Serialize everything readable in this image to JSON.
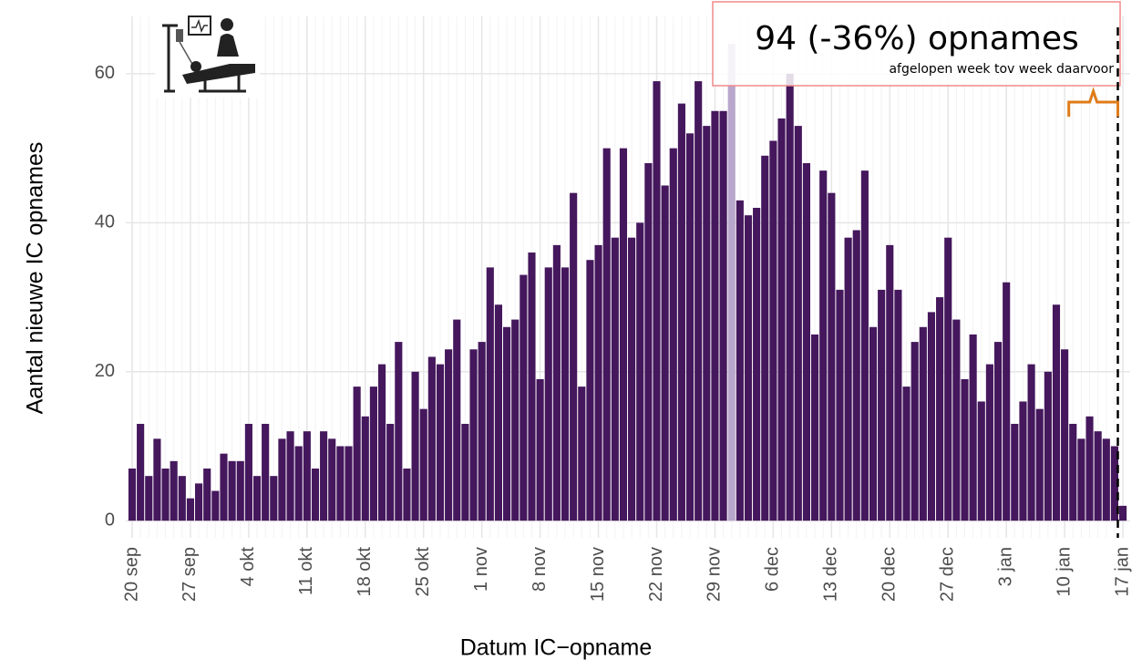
{
  "chart_data": {
    "type": "bar",
    "x_label": "Datum IC−opname",
    "y_label": "Aantal nieuwe IC opnames",
    "annotation_title": "94 (-36%) opnames",
    "annotation_subtitle": "afgelopen week tov week daarvoor",
    "categories": [
      "20 sep",
      null,
      null,
      null,
      null,
      null,
      null,
      "27 sep",
      null,
      null,
      null,
      null,
      null,
      null,
      "4 okt",
      null,
      null,
      null,
      null,
      null,
      null,
      "11 okt",
      null,
      null,
      null,
      null,
      null,
      null,
      "18 okt",
      null,
      null,
      null,
      null,
      null,
      null,
      "25 okt",
      null,
      null,
      null,
      null,
      null,
      null,
      "1 nov",
      null,
      null,
      null,
      null,
      null,
      null,
      "8 nov",
      null,
      null,
      null,
      null,
      null,
      null,
      "15 nov",
      null,
      null,
      null,
      null,
      null,
      null,
      "22 nov",
      null,
      null,
      null,
      null,
      null,
      null,
      "29 nov",
      null,
      null,
      null,
      null,
      null,
      null,
      "6 dec",
      null,
      null,
      null,
      null,
      null,
      null,
      "13 dec",
      null,
      null,
      null,
      null,
      null,
      null,
      "20 dec",
      null,
      null,
      null,
      null,
      null,
      null,
      "27 dec",
      null,
      null,
      null,
      null,
      null,
      null,
      "3 jan",
      null,
      null,
      null,
      null,
      null,
      null,
      "10 jan",
      null,
      null,
      null,
      null,
      null,
      null,
      "17 jan"
    ],
    "values": [
      7,
      13,
      6,
      11,
      7,
      8,
      6,
      3,
      5,
      7,
      4,
      9,
      8,
      8,
      13,
      6,
      13,
      6,
      11,
      12,
      10,
      12,
      7,
      12,
      11,
      10,
      10,
      18,
      14,
      18,
      21,
      13,
      24,
      7,
      20,
      15,
      22,
      21,
      23,
      27,
      13,
      23,
      24,
      34,
      29,
      26,
      27,
      33,
      36,
      19,
      34,
      37,
      34,
      44,
      18,
      35,
      37,
      50,
      38,
      50,
      38,
      40,
      48,
      59,
      45,
      50,
      56,
      52,
      59,
      53,
      55,
      55,
      64,
      43,
      41,
      42,
      49,
      51,
      54,
      60,
      53,
      48,
      25,
      47,
      44,
      31,
      38,
      39,
      47,
      26,
      31,
      37,
      31,
      18,
      24,
      26,
      28,
      30,
      38,
      27,
      19,
      25,
      16,
      21,
      24,
      32,
      13,
      16,
      21,
      15,
      20,
      29,
      23,
      13,
      11,
      14,
      12,
      11,
      10,
      2
    ],
    "color": "#45175d",
    "highlight": {
      "index": 72,
      "color": "#b8a6cc"
    },
    "ylim": [
      -2.3,
      67.7
    ],
    "yticks": [
      0,
      20,
      40,
      60
    ],
    "grid": true
  }
}
